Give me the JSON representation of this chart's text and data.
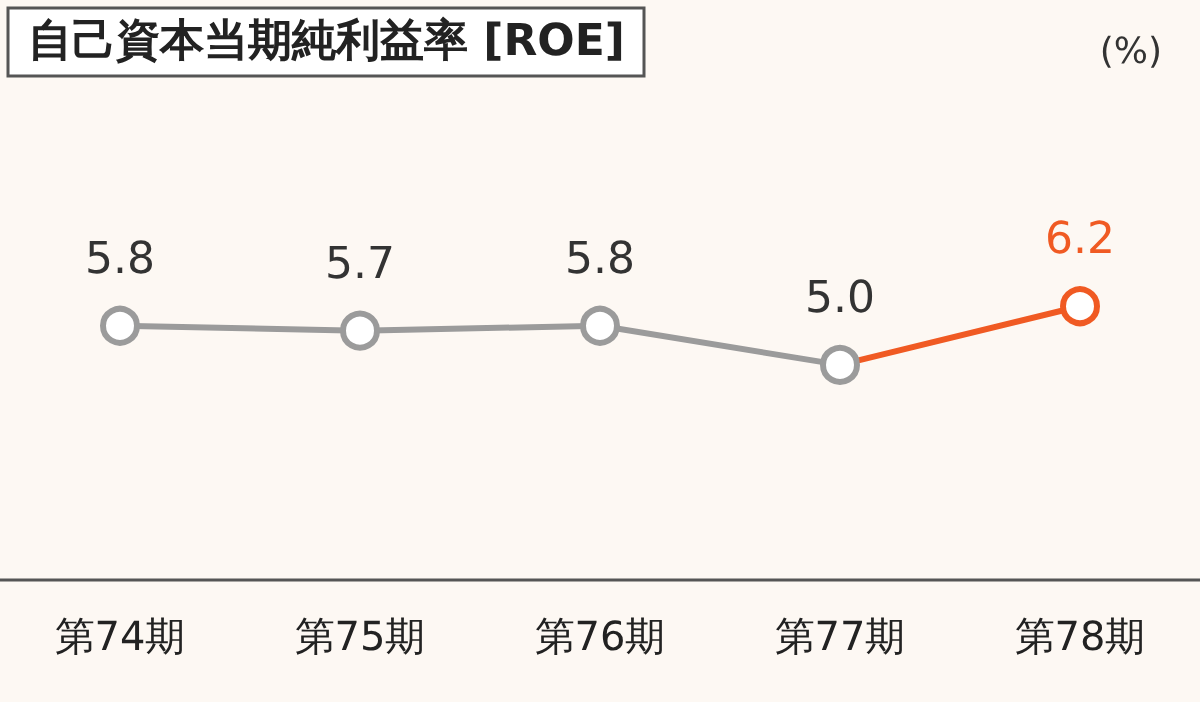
{
  "chart_data": {
    "type": "line",
    "title": "自己資本当期純利益率 [ROE]",
    "annotations": [
      "(%)"
    ],
    "categories": [
      "第74期",
      "第75期",
      "第76期",
      "第77期",
      "第78期"
    ],
    "series": [
      {
        "values": [
          5.8,
          5.7,
          5.8,
          5.0,
          6.2
        ],
        "value_labels": [
          "5.8",
          "5.7",
          "5.8",
          "5.0",
          "6.2"
        ],
        "colors": [
          "#9b9b9b",
          "#9b9b9b",
          "#9b9b9b",
          "#9b9b9b",
          "#f05a23"
        ]
      }
    ],
    "marker": "circle",
    "line_style": "solid",
    "grid": false
  }
}
